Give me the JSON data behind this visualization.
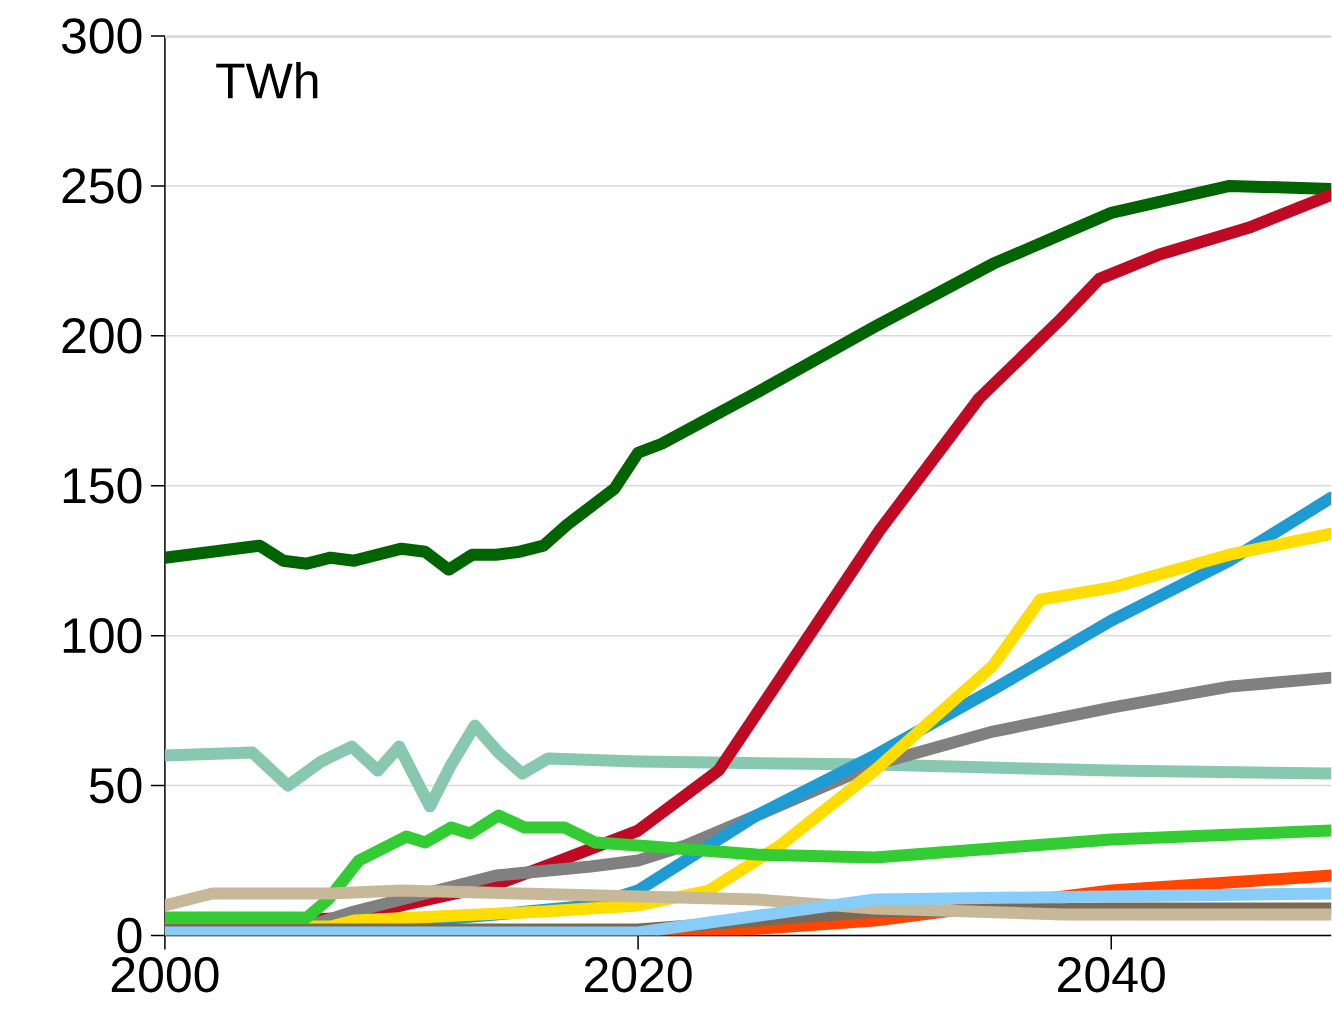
{
  "chart_data": {
    "type": "line",
    "annotations": [
      "TWh"
    ],
    "xlim": [
      2000,
      2049.3
    ],
    "xticks": [
      2000,
      2020,
      2040
    ],
    "ylim": [
      0,
      300
    ],
    "yticks": [
      0,
      50,
      100,
      150,
      200,
      250,
      300
    ],
    "grid": "y",
    "series": [
      {
        "color": "#006400",
        "x": [
          2000,
          2002,
          2004,
          2005,
          2006,
          2007,
          2008,
          2009,
          2010,
          2011,
          2012,
          2013,
          2014,
          2015,
          2016,
          2017,
          2018,
          2019,
          2020,
          2021,
          2025,
          2030,
          2035,
          2040,
          2045,
          2049.3
        ],
        "values": [
          126,
          128,
          130,
          125,
          124,
          126,
          125,
          127,
          129,
          128,
          122,
          127,
          127,
          128,
          130,
          137,
          143,
          149,
          161,
          164,
          181,
          203,
          224,
          241,
          250,
          249
        ]
      },
      {
        "color": "#88c8b0",
        "x": [
          2000,
          2003.7,
          2005.2,
          2006.6,
          2007.9,
          2009,
          2009.9,
          2011.2,
          2012.1,
          2013.1,
          2014.1,
          2015.1,
          2016.2,
          2020,
          2030,
          2040,
          2049.3
        ],
        "values": [
          60,
          61,
          50,
          58,
          63,
          55,
          63,
          43,
          57,
          70,
          61,
          54,
          59,
          58,
          57,
          55,
          54
        ]
      },
      {
        "color": "#c00a23",
        "x": [
          2000,
          2008,
          2010,
          2014,
          2016.7,
          2020,
          2023.4,
          2026.8,
          2030.2,
          2034.4,
          2037.8,
          2039.5,
          2042,
          2045.8,
          2049.3
        ],
        "values": [
          3,
          6,
          10,
          17,
          25,
          35,
          55,
          95,
          135,
          179,
          205,
          219,
          227,
          236,
          247
        ]
      },
      {
        "color": "#808080",
        "x": [
          2000,
          2006,
          2008,
          2010,
          2014,
          2018,
          2020,
          2022,
          2025,
          2030,
          2035,
          2040,
          2045,
          2049.3
        ],
        "values": [
          3,
          3,
          8,
          12,
          20,
          23,
          25,
          30,
          40,
          57,
          68,
          76,
          83,
          86
        ]
      },
      {
        "color": "#1f9bd4",
        "x": [
          2000,
          2008,
          2014,
          2018,
          2020,
          2022,
          2025,
          2030,
          2035,
          2040,
          2045,
          2049.3
        ],
        "values": [
          3,
          3,
          7,
          10,
          15,
          25,
          40,
          60,
          82,
          105,
          125,
          146
        ]
      },
      {
        "color": "#ffdd00",
        "x": [
          2000,
          2007,
          2008,
          2016,
          2020,
          2023,
          2026,
          2030,
          2035,
          2037,
          2040,
          2045,
          2049.3
        ],
        "values": [
          3,
          3,
          5,
          8,
          10,
          15,
          30,
          55,
          90,
          112,
          116,
          127,
          134
        ]
      },
      {
        "color": "#33cc33",
        "x": [
          2000,
          2006,
          2006.9,
          2008.2,
          2010.2,
          2011,
          2012.1,
          2012.9,
          2014.1,
          2015.2,
          2016.9,
          2018.2,
          2020,
          2025,
          2030,
          2040,
          2049.3
        ],
        "values": [
          6,
          6,
          12,
          25,
          33,
          31,
          36,
          34,
          40,
          36,
          36,
          31,
          30,
          27,
          26,
          32,
          35
        ]
      },
      {
        "color": "#ff4500",
        "x": [
          2021,
          2030,
          2040,
          2049.3
        ],
        "values": [
          0,
          5,
          15,
          20
        ]
      },
      {
        "color": "#7a6a55",
        "x": [
          2000,
          2020,
          2030,
          2040,
          2049.3
        ],
        "values": [
          2,
          2,
          8,
          9,
          9
        ]
      },
      {
        "color": "#c8b89a",
        "x": [
          2000,
          2002,
          2007,
          2010,
          2015,
          2020,
          2025,
          2030,
          2038,
          2049.3
        ],
        "values": [
          10,
          14,
          14,
          15,
          14,
          13,
          12,
          9,
          7,
          7
        ]
      },
      {
        "color": "#88ccf8",
        "x": [
          2000,
          2020,
          2030,
          2049.3
        ],
        "values": [
          1,
          1,
          12,
          14
        ]
      }
    ]
  }
}
